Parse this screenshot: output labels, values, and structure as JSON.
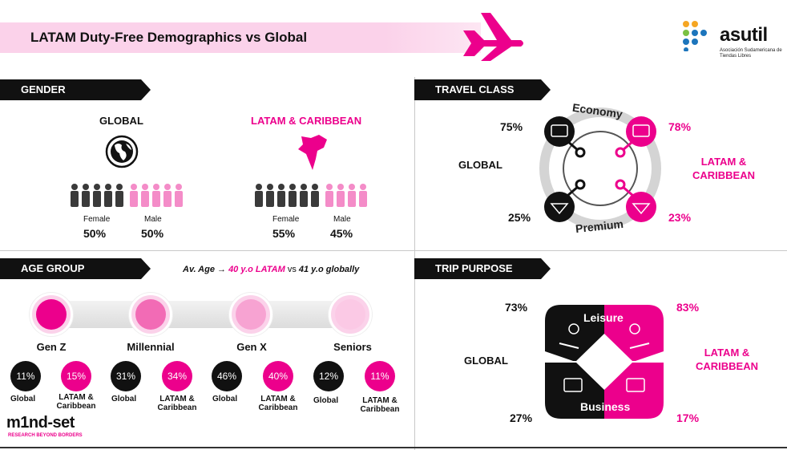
{
  "header": {
    "title": "LATAM Duty-Free Demographics vs Global"
  },
  "logo": {
    "name": "asutil",
    "subtitle": "Asociación Sudamericana de Tiendas Libres"
  },
  "gender": {
    "section_title": "GENDER",
    "global_label": "GLOBAL",
    "latam_label": "LATAM & CARIBBEAN",
    "female_label": "Female",
    "male_label": "Male",
    "global_female": "50%",
    "global_male": "50%",
    "latam_female": "55%",
    "latam_male": "45%"
  },
  "travel_class": {
    "section_title": "TRAVEL CLASS",
    "global_label": "GLOBAL",
    "latam_label_1": "LATAM &",
    "latam_label_2": "CARIBBEAN",
    "economy_label": "Economy",
    "premium_label": "Premium",
    "global_economy": "75%",
    "latam_economy": "78%",
    "global_premium": "25%",
    "latam_premium": "23%"
  },
  "age_group": {
    "section_title": "AGE GROUP",
    "avg_prefix": "Av. Age →",
    "avg_latam": "40 y.o LATAM",
    "avg_vs": "vs",
    "avg_global": "41 y.o globally",
    "global_label": "Global",
    "latam_label_1": "LATAM &",
    "latam_label_2": "Caribbean",
    "groups": [
      {
        "name": "Gen Z",
        "global": "11%",
        "latam": "15%"
      },
      {
        "name": "Millennial",
        "global": "31%",
        "latam": "34%"
      },
      {
        "name": "Gen X",
        "global": "46%",
        "latam": "40%"
      },
      {
        "name": "Seniors",
        "global": "12%",
        "latam": "11%"
      }
    ]
  },
  "trip_purpose": {
    "section_title": "TRIP PURPOSE",
    "global_label": "GLOBAL",
    "latam_label_1": "LATAM &",
    "latam_label_2": "CARIBBEAN",
    "leisure_label": "Leisure",
    "business_label": "Business",
    "global_leisure": "73%",
    "latam_leisure": "83%",
    "global_business": "27%",
    "latam_business": "17%"
  },
  "footer_logo": {
    "name": "m1nd-set",
    "tagline": "RESEARCH BEYOND BORDERS"
  },
  "colors": {
    "pink": "#ec008c",
    "light_pink": "#fbd2ea",
    "black": "#111111",
    "grey": "#d0d0d0"
  }
}
